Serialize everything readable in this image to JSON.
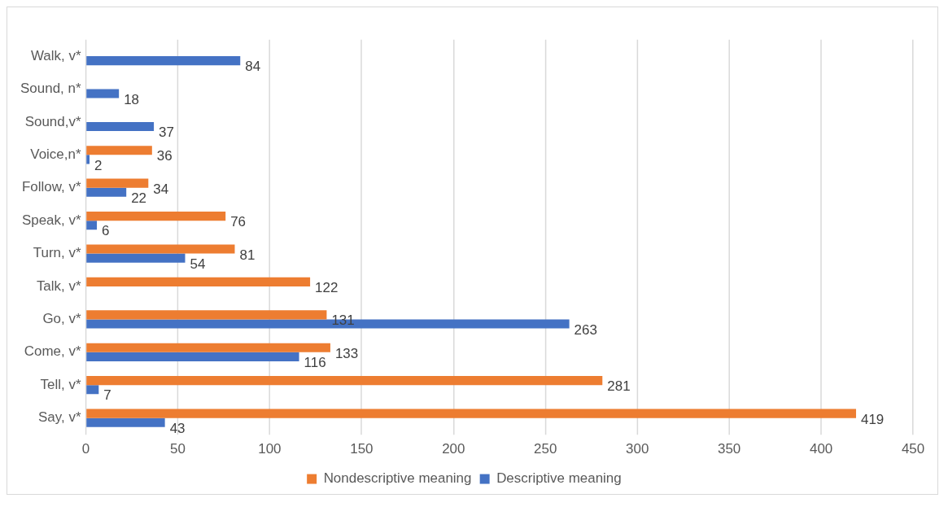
{
  "chart_data": {
    "type": "bar",
    "orientation": "horizontal",
    "categories": [
      "Walk, v*",
      "Sound, n*",
      "Sound,v*",
      "Voice,n*",
      "Follow, v*",
      "Speak, v*",
      "Turn, v*",
      "Talk, v*",
      "Go, v*",
      "Come, v*",
      "Tell, v*",
      "Say, v*"
    ],
    "series": [
      {
        "name": "Nondescriptive meaning",
        "color": "#ed7d31",
        "values": [
          null,
          null,
          null,
          36,
          34,
          76,
          81,
          122,
          131,
          133,
          281,
          419
        ]
      },
      {
        "name": "Descriptive meaning",
        "color": "#4472c4",
        "values": [
          84,
          18,
          37,
          2,
          22,
          6,
          54,
          null,
          263,
          116,
          7,
          43
        ]
      }
    ],
    "xlim": [
      0,
      450
    ],
    "xticks": [
      0,
      50,
      100,
      150,
      200,
      250,
      300,
      350,
      400,
      450
    ],
    "grid": "x",
    "legend": "bottom",
    "data_labels": true
  }
}
